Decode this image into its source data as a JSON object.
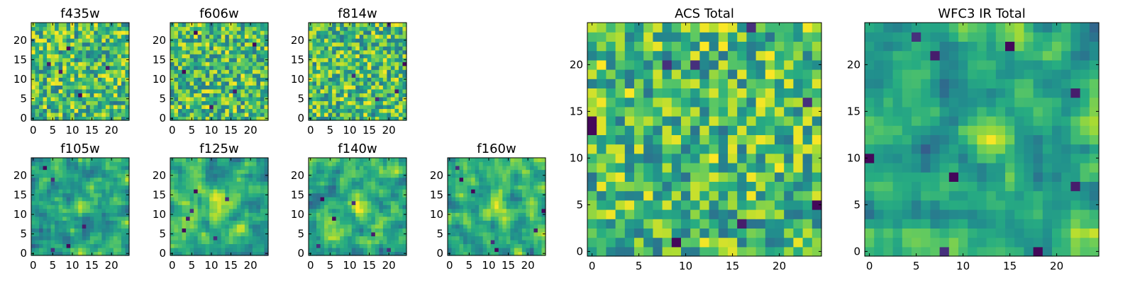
{
  "chart_data": [
    {
      "type": "heatmap",
      "title": "f435w",
      "grid_size": 25,
      "xticks": [
        0,
        5,
        10,
        15,
        20
      ],
      "yticks": [
        0,
        5,
        10,
        15,
        20
      ],
      "xlim": [
        -0.5,
        24.5
      ],
      "ylim": [
        -0.5,
        24.5
      ],
      "colormap": "viridis",
      "pattern": "uniform-noise",
      "seed": 11,
      "blur": 0,
      "dark_pixels": [
        [
          9,
          18
        ],
        [
          19,
          13
        ],
        [
          4,
          14
        ],
        [
          12,
          6
        ],
        [
          7,
          12
        ]
      ],
      "bright_blob": null
    },
    {
      "type": "heatmap",
      "title": "f606w",
      "grid_size": 25,
      "xticks": [
        0,
        5,
        10,
        15,
        20
      ],
      "yticks": [
        0,
        5,
        10,
        15,
        20
      ],
      "xlim": [
        -0.5,
        24.5
      ],
      "ylim": [
        -0.5,
        24.5
      ],
      "colormap": "viridis",
      "pattern": "uniform-noise",
      "seed": 23,
      "blur": 0,
      "dark_pixels": [
        [
          3,
          12
        ],
        [
          16,
          7
        ],
        [
          21,
          19
        ],
        [
          10,
          3
        ],
        [
          6,
          22
        ]
      ],
      "bright_blob": null
    },
    {
      "type": "heatmap",
      "title": "f814w",
      "grid_size": 25,
      "xticks": [
        0,
        5,
        10,
        15,
        20
      ],
      "yticks": [
        0,
        5,
        10,
        15,
        20
      ],
      "xlim": [
        -0.5,
        24.5
      ],
      "ylim": [
        -0.5,
        24.5
      ],
      "colormap": "viridis",
      "pattern": "uniform-noise",
      "seed": 37,
      "blur": 0,
      "dark_pixels": [
        [
          20,
          24
        ],
        [
          17,
          5
        ],
        [
          11,
          11
        ],
        [
          22,
          7
        ],
        [
          24,
          14
        ]
      ],
      "bright_blob": null
    },
    {
      "type": "heatmap",
      "title": "f105w",
      "grid_size": 25,
      "xticks": [
        0,
        5,
        10,
        15,
        20
      ],
      "yticks": [
        0,
        5,
        10,
        15,
        20
      ],
      "xlim": [
        -0.5,
        24.5
      ],
      "ylim": [
        -0.5,
        24.5
      ],
      "colormap": "viridis",
      "pattern": "smooth",
      "seed": 41,
      "blur": 1,
      "dark_pixels": [
        [
          3,
          22
        ],
        [
          5,
          19
        ],
        [
          13,
          7
        ],
        [
          5,
          1
        ],
        [
          9,
          2
        ]
      ],
      "bright_blob": [
        13,
        13,
        4
      ]
    },
    {
      "type": "heatmap",
      "title": "f125w",
      "grid_size": 25,
      "xticks": [
        0,
        5,
        10,
        15,
        20
      ],
      "yticks": [
        0,
        5,
        10,
        15,
        20
      ],
      "xlim": [
        -0.5,
        24.5
      ],
      "ylim": [
        -0.5,
        24.5
      ],
      "colormap": "viridis",
      "pattern": "smooth",
      "seed": 53,
      "blur": 1,
      "dark_pixels": [
        [
          5,
          11
        ],
        [
          4,
          9
        ],
        [
          3,
          6
        ],
        [
          14,
          14
        ],
        [
          11,
          4
        ],
        [
          6,
          16
        ]
      ],
      "bright_blob": [
        12,
        12,
        5
      ]
    },
    {
      "type": "heatmap",
      "title": "f140w",
      "grid_size": 25,
      "xticks": [
        0,
        5,
        10,
        15,
        20
      ],
      "yticks": [
        0,
        5,
        10,
        15,
        20
      ],
      "xlim": [
        -0.5,
        24.5
      ],
      "ylim": [
        -0.5,
        24.5
      ],
      "colormap": "viridis",
      "pattern": "smooth",
      "seed": 67,
      "blur": 1,
      "dark_pixels": [
        [
          3,
          14
        ],
        [
          6,
          9
        ],
        [
          11,
          13
        ],
        [
          2,
          2
        ],
        [
          16,
          5
        ],
        [
          20,
          1
        ]
      ],
      "bright_blob": [
        12,
        13,
        4
      ]
    },
    {
      "type": "heatmap",
      "title": "f160w",
      "grid_size": 25,
      "xticks": [
        0,
        5,
        10,
        15,
        20
      ],
      "yticks": [
        0,
        5,
        10,
        15,
        20
      ],
      "xlim": [
        -0.5,
        24.5
      ],
      "ylim": [
        -0.5,
        24.5
      ],
      "colormap": "viridis",
      "pattern": "smooth",
      "seed": 79,
      "blur": 1,
      "dark_pixels": [
        [
          2,
          22
        ],
        [
          3,
          19
        ],
        [
          11,
          3
        ],
        [
          12,
          1
        ],
        [
          22,
          6
        ],
        [
          24,
          11
        ],
        [
          6,
          16
        ]
      ],
      "bright_blob": [
        12,
        12,
        5
      ]
    },
    {
      "type": "heatmap",
      "title": "ACS Total",
      "grid_size": 25,
      "xticks": [
        0,
        5,
        10,
        15,
        20
      ],
      "yticks": [
        0,
        5,
        10,
        15,
        20
      ],
      "xlim": [
        -0.5,
        24.5
      ],
      "ylim": [
        -0.5,
        24.5
      ],
      "colormap": "viridis",
      "pattern": "uniform-noise",
      "seed": 91,
      "blur": 0,
      "dark_pixels": [
        [
          17,
          24
        ],
        [
          8,
          20
        ],
        [
          11,
          20
        ],
        [
          0,
          14
        ],
        [
          0,
          13
        ],
        [
          16,
          3
        ],
        [
          24,
          5
        ],
        [
          23,
          16
        ],
        [
          9,
          1
        ]
      ],
      "bright_blob": null
    },
    {
      "type": "heatmap",
      "title": "WFC3 IR Total",
      "grid_size": 25,
      "xticks": [
        0,
        5,
        10,
        15,
        20
      ],
      "yticks": [
        0,
        5,
        10,
        15,
        20
      ],
      "xlim": [
        -0.5,
        24.5
      ],
      "ylim": [
        -0.5,
        24.5
      ],
      "colormap": "viridis",
      "pattern": "smooth",
      "seed": 103,
      "blur": 1,
      "dark_pixels": [
        [
          5,
          23
        ],
        [
          7,
          21
        ],
        [
          15,
          22
        ],
        [
          22,
          17
        ],
        [
          0,
          10
        ],
        [
          9,
          8
        ],
        [
          22,
          7
        ],
        [
          8,
          0
        ],
        [
          18,
          0
        ]
      ],
      "bright_blob": [
        13,
        12,
        4
      ]
    }
  ]
}
